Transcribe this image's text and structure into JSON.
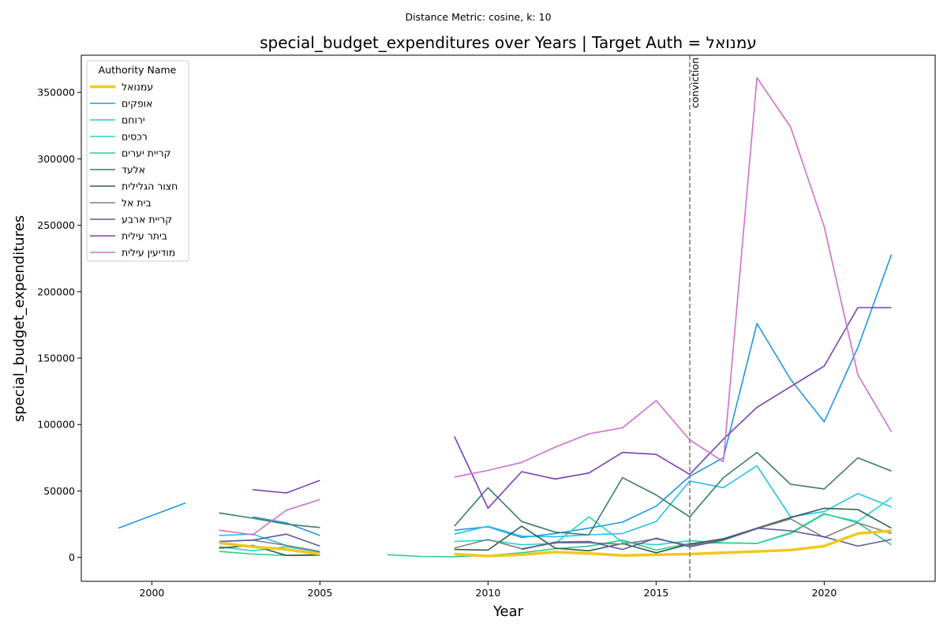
{
  "chart_data": {
    "type": "line",
    "suptitle": "Distance Metric: cosine, k: 10",
    "title": "special_budget_expenditures over Years | Target Auth = עמנואל",
    "xlabel": "Year",
    "ylabel": "special_budget_expenditures",
    "xlim": [
      1997.9,
      2023.3
    ],
    "ylim": [
      -18000,
      378000
    ],
    "xticks": [
      2000,
      2005,
      2010,
      2015,
      2020
    ],
    "yticks": [
      0,
      50000,
      100000,
      150000,
      200000,
      250000,
      300000,
      350000
    ],
    "grid": false,
    "legend_title": "Authority Name",
    "legend_position": "upper left",
    "annotation": {
      "label": "conviction",
      "x": 2016
    },
    "series": [
      {
        "name": "עמנואל",
        "color": "#f2c71f",
        "width": 3.5,
        "points": [
          [
            2002,
            11000
          ],
          [
            2003,
            8000
          ],
          [
            2004,
            6000
          ],
          [
            2005,
            2500
          ],
          [
            null,
            null
          ],
          [
            2009,
            2500
          ],
          [
            2010,
            1000
          ],
          [
            2011,
            2000
          ],
          [
            2012,
            4000
          ],
          [
            2013,
            3000
          ],
          [
            2014,
            1500
          ],
          [
            2015,
            2000
          ],
          [
            2016,
            2500
          ],
          [
            2017,
            3500
          ],
          [
            2018,
            4500
          ],
          [
            2019,
            5500
          ],
          [
            2020,
            8500
          ],
          [
            2021,
            18000
          ],
          [
            2022,
            20000
          ]
        ]
      },
      {
        "name": "אופקים",
        "color": "#2195e8",
        "width": 1.6,
        "points": [
          [
            1999,
            22000
          ],
          [
            2000,
            31500
          ],
          [
            2001,
            41000
          ],
          [
            null,
            null
          ],
          [
            2003,
            30500
          ],
          [
            2004,
            26000
          ],
          [
            2005,
            16500
          ],
          [
            null,
            null
          ],
          [
            2009,
            20500
          ],
          [
            2010,
            23000
          ],
          [
            2011,
            15000
          ],
          [
            2012,
            18000
          ],
          [
            2013,
            22000
          ],
          [
            2014,
            26500
          ],
          [
            2015,
            38500
          ],
          [
            2016,
            61000
          ],
          [
            2017,
            75000
          ],
          [
            2018,
            176000
          ],
          [
            2019,
            134000
          ],
          [
            2020,
            102000
          ],
          [
            2021,
            158000
          ],
          [
            2022,
            228000
          ]
        ]
      },
      {
        "name": "ירוחם",
        "color": "#24c1ea",
        "width": 1.6,
        "points": [
          [
            2002,
            16500
          ],
          [
            2003,
            17500
          ],
          [
            2004,
            9000
          ],
          [
            2005,
            4500
          ],
          [
            null,
            null
          ],
          [
            2009,
            17500
          ],
          [
            2010,
            23500
          ],
          [
            2011,
            16000
          ],
          [
            2012,
            15500
          ],
          [
            2013,
            17000
          ],
          [
            2014,
            18000
          ],
          [
            2015,
            27000
          ],
          [
            2016,
            57500
          ],
          [
            2017,
            52500
          ],
          [
            2018,
            69000
          ],
          [
            2019,
            30500
          ],
          [
            2020,
            34500
          ],
          [
            2021,
            48000
          ],
          [
            2022,
            38000
          ]
        ]
      },
      {
        "name": "רכסים",
        "color": "#25d6c4",
        "width": 1.6,
        "points": [
          [
            2002,
            8000
          ],
          [
            2003,
            5000
          ],
          [
            2004,
            8000
          ],
          [
            2005,
            4000
          ],
          [
            null,
            null
          ],
          [
            2009,
            12000
          ],
          [
            2010,
            13000
          ],
          [
            2011,
            9500
          ],
          [
            2012,
            10500
          ],
          [
            2013,
            30500
          ],
          [
            2014,
            11500
          ],
          [
            2015,
            9500
          ],
          [
            2016,
            12500
          ],
          [
            2017,
            11000
          ],
          [
            2018,
            10500
          ],
          [
            2019,
            18000
          ],
          [
            2020,
            32500
          ],
          [
            2021,
            27000
          ],
          [
            2022,
            45000
          ]
        ]
      },
      {
        "name": "קריית יערים",
        "color": "#2ccc8a",
        "width": 1.6,
        "points": [
          [
            2002,
            4500
          ],
          [
            2003,
            2500
          ],
          [
            2004,
            1500
          ],
          [
            2005,
            1500
          ],
          [
            null,
            null
          ],
          [
            2007,
            2000
          ],
          [
            2008,
            700
          ],
          [
            2009,
            500
          ],
          [
            2010,
            1500
          ],
          [
            2011,
            3500
          ],
          [
            2012,
            6500
          ],
          [
            2013,
            8500
          ],
          [
            2014,
            13000
          ],
          [
            2015,
            5500
          ],
          [
            2016,
            10500
          ],
          [
            2017,
            11000
          ],
          [
            2018,
            10500
          ],
          [
            2019,
            18500
          ],
          [
            2020,
            33000
          ],
          [
            2021,
            26000
          ],
          [
            2022,
            9500
          ]
        ]
      },
      {
        "name": "אלעד",
        "color": "#3a7d68",
        "width": 1.6,
        "points": [
          [
            2002,
            33500
          ],
          [
            2003,
            29500
          ],
          [
            2004,
            25000
          ],
          [
            2005,
            22500
          ],
          [
            null,
            null
          ],
          [
            2009,
            23500
          ],
          [
            2010,
            52500
          ],
          [
            2011,
            27000
          ],
          [
            2012,
            19000
          ],
          [
            2013,
            17000
          ],
          [
            2014,
            60000
          ],
          [
            2015,
            47000
          ],
          [
            2016,
            30500
          ],
          [
            2017,
            60000
          ],
          [
            2018,
            79000
          ],
          [
            2019,
            55000
          ],
          [
            2020,
            51500
          ],
          [
            2021,
            75000
          ],
          [
            2022,
            65000
          ]
        ]
      },
      {
        "name": "חצור הגלילית",
        "color": "#2e5e4e",
        "width": 1.6,
        "points": [
          [
            2002,
            7000
          ],
          [
            2003,
            9000
          ],
          [
            2004,
            1500
          ],
          [
            2005,
            2000
          ],
          [
            null,
            null
          ],
          [
            2009,
            6000
          ],
          [
            2010,
            5500
          ],
          [
            2011,
            23500
          ],
          [
            2012,
            7000
          ],
          [
            2013,
            5000
          ],
          [
            2014,
            10500
          ],
          [
            2015,
            3500
          ],
          [
            2016,
            10000
          ],
          [
            2017,
            14000
          ],
          [
            2018,
            22000
          ],
          [
            2019,
            30000
          ],
          [
            2020,
            37000
          ],
          [
            2021,
            36000
          ],
          [
            2022,
            22000
          ]
        ]
      },
      {
        "name": "בית אל",
        "color": "#808080",
        "width": 1.6,
        "points": [
          [
            2002,
            12000
          ],
          [
            2003,
            13000
          ],
          [
            2004,
            9000
          ],
          [
            2005,
            4000
          ],
          [
            null,
            null
          ],
          [
            2009,
            7000
          ],
          [
            2010,
            13500
          ],
          [
            2011,
            6500
          ],
          [
            2012,
            11000
          ],
          [
            2013,
            11000
          ],
          [
            2014,
            10000
          ],
          [
            2015,
            14000
          ],
          [
            2016,
            9000
          ],
          [
            2017,
            13000
          ],
          [
            2018,
            21500
          ],
          [
            2019,
            29000
          ],
          [
            2020,
            15000
          ],
          [
            2021,
            26000
          ],
          [
            2022,
            18000
          ]
        ]
      },
      {
        "name": "קריית ארבע",
        "color": "#5a5a9c",
        "width": 1.6,
        "points": [
          [
            2002,
            12000
          ],
          [
            2003,
            13000
          ],
          [
            2004,
            17500
          ],
          [
            2005,
            8500
          ],
          [
            null,
            null
          ],
          [
            2011,
            6000
          ],
          [
            2012,
            11500
          ],
          [
            2013,
            12000
          ],
          [
            2014,
            6000
          ],
          [
            2015,
            14500
          ],
          [
            2016,
            8000
          ],
          [
            2017,
            13000
          ],
          [
            2018,
            22000
          ],
          [
            2019,
            20000
          ],
          [
            2020,
            15500
          ],
          [
            2021,
            8500
          ],
          [
            2022,
            13500
          ]
        ]
      },
      {
        "name": "ביתר עילית",
        "color": "#7b3fb5",
        "width": 1.6,
        "points": [
          [
            2003,
            51000
          ],
          [
            2004,
            48500
          ],
          [
            2005,
            58000
          ],
          [
            null,
            null
          ],
          [
            2009,
            91000
          ],
          [
            2010,
            37000
          ],
          [
            2011,
            64500
          ],
          [
            2012,
            59000
          ],
          [
            2013,
            63500
          ],
          [
            2014,
            79000
          ],
          [
            2015,
            77500
          ],
          [
            2016,
            62500
          ],
          [
            2017,
            89000
          ],
          [
            2018,
            113000
          ],
          [
            2019,
            128500
          ],
          [
            2020,
            144000
          ],
          [
            2021,
            188000
          ],
          [
            2022,
            188000
          ]
        ]
      },
      {
        "name": "מודיעין עילית",
        "color": "#cf6ecf",
        "width": 1.6,
        "points": [
          [
            2002,
            20500
          ],
          [
            2003,
            17000
          ],
          [
            2004,
            35500
          ],
          [
            2005,
            43500
          ],
          [
            null,
            null
          ],
          [
            2009,
            60500
          ],
          [
            2010,
            65500
          ],
          [
            2011,
            71500
          ],
          [
            2012,
            83000
          ],
          [
            2013,
            93000
          ],
          [
            2014,
            97500
          ],
          [
            2015,
            118000
          ],
          [
            2016,
            88500
          ],
          [
            2017,
            72000
          ],
          [
            2018,
            361000
          ],
          [
            2019,
            324000
          ],
          [
            2020,
            249000
          ],
          [
            2021,
            137500
          ],
          [
            2022,
            94500
          ]
        ]
      }
    ]
  }
}
